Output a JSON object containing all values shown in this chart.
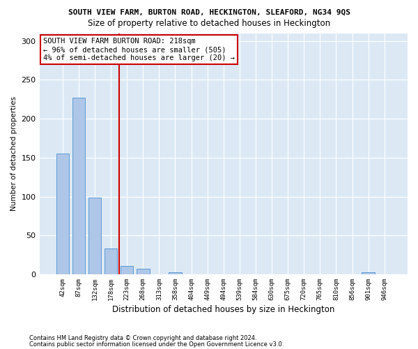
{
  "title1": "SOUTH VIEW FARM, BURTON ROAD, HECKINGTON, SLEAFORD, NG34 9QS",
  "title2": "Size of property relative to detached houses in Heckington",
  "xlabel": "Distribution of detached houses by size in Heckington",
  "ylabel": "Number of detached properties",
  "bin_labels": [
    "42sqm",
    "87sqm",
    "132sqm",
    "178sqm",
    "223sqm",
    "268sqm",
    "313sqm",
    "358sqm",
    "404sqm",
    "449sqm",
    "494sqm",
    "539sqm",
    "584sqm",
    "630sqm",
    "675sqm",
    "720sqm",
    "765sqm",
    "810sqm",
    "856sqm",
    "901sqm",
    "946sqm"
  ],
  "bar_values": [
    155,
    227,
    99,
    33,
    11,
    7,
    0,
    3,
    0,
    0,
    0,
    0,
    0,
    0,
    0,
    0,
    0,
    0,
    0,
    3,
    0
  ],
  "bar_color": "#aec6e8",
  "bar_edge_color": "#5b9bd5",
  "vline_bin_index": 4,
  "vline_color": "#cc0000",
  "annotation_text": "SOUTH VIEW FARM BURTON ROAD: 218sqm\n← 96% of detached houses are smaller (505)\n4% of semi-detached houses are larger (20) →",
  "annotation_box_color": "#ffffff",
  "annotation_box_edge": "#cc0000",
  "ylim": [
    0,
    310
  ],
  "yticks": [
    0,
    50,
    100,
    150,
    200,
    250,
    300
  ],
  "bg_color": "#dce9f5",
  "footnote1": "Contains HM Land Registry data © Crown copyright and database right 2024.",
  "footnote2": "Contains public sector information licensed under the Open Government Licence v3.0."
}
